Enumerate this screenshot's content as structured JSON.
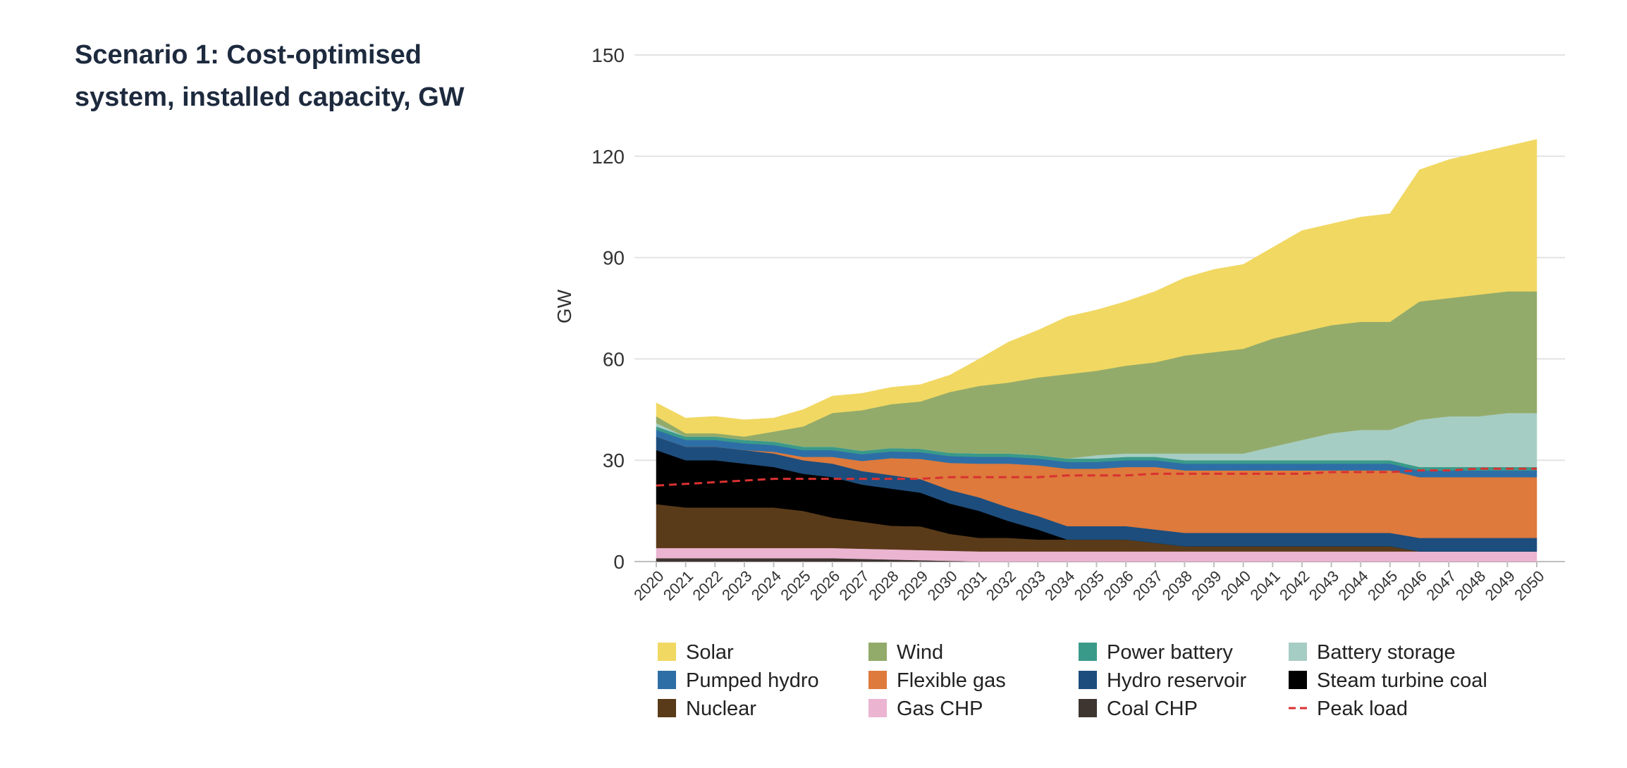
{
  "chart_data": {
    "type": "area",
    "title": "Scenario 1: Cost-optimised system, installed capacity, GW",
    "xlabel": "",
    "ylabel": "GW",
    "ylim": [
      0,
      150
    ],
    "yticks": [
      0,
      30,
      60,
      90,
      120,
      150
    ],
    "grid": true,
    "legend_position": "bottom",
    "x": [
      "2020",
      "2021",
      "2022",
      "2023",
      "2024",
      "2025",
      "2026",
      "2027",
      "2028",
      "2029",
      "2030",
      "2031",
      "2032",
      "2033",
      "2034",
      "2035",
      "2036",
      "2037",
      "2038",
      "2039",
      "2040",
      "2041",
      "2042",
      "2043",
      "2044",
      "2045",
      "2046",
      "2047",
      "2048",
      "2049",
      "2050"
    ],
    "series": [
      {
        "name": "Coal CHP",
        "color": "#3e3530",
        "values": [
          1,
          1,
          1,
          1,
          1,
          1,
          1,
          0.8,
          0.6,
          0.4,
          0.2,
          0,
          0,
          0,
          0,
          0,
          0,
          0,
          0,
          0,
          0,
          0,
          0,
          0,
          0,
          0,
          0,
          0,
          0,
          0,
          0
        ]
      },
      {
        "name": "Gas CHP",
        "color": "#ebb4d1",
        "values": [
          3,
          3,
          3,
          3,
          3,
          3,
          3,
          3,
          3,
          3,
          3,
          3,
          3,
          3,
          3,
          3,
          3,
          3,
          3,
          3,
          3,
          3,
          3,
          3,
          3,
          3,
          3,
          3,
          3,
          3,
          3
        ]
      },
      {
        "name": "Nuclear",
        "color": "#5a3b19",
        "values": [
          13,
          12,
          12,
          12,
          12,
          11,
          9,
          8,
          7,
          7,
          5,
          4,
          4,
          3.5,
          3.5,
          3.5,
          3.5,
          2.5,
          1.5,
          1.5,
          1.5,
          1.5,
          1.5,
          1.5,
          1.5,
          1.5,
          0,
          0,
          0,
          0,
          0
        ]
      },
      {
        "name": "Steam turbine coal",
        "color": "#000000",
        "values": [
          16,
          14,
          14,
          13,
          12,
          11,
          12,
          11,
          11,
          10,
          9,
          8,
          5,
          3,
          0,
          0,
          0,
          0,
          0,
          0,
          0,
          0,
          0,
          0,
          0,
          0,
          0,
          0,
          0,
          0,
          0
        ]
      },
      {
        "name": "Hydro reservoir",
        "color": "#1d4d7c",
        "values": [
          4,
          4,
          4,
          4,
          4,
          4,
          4,
          4,
          4,
          4,
          4,
          4,
          4,
          4,
          4,
          4,
          4,
          4,
          4,
          4,
          4,
          4,
          4,
          4,
          4,
          4,
          4,
          4,
          4,
          4,
          4
        ]
      },
      {
        "name": "Flexible gas",
        "color": "#dd7a3c",
        "values": [
          0,
          0,
          0,
          0,
          0.5,
          1,
          2,
          3,
          5,
          6,
          8,
          10,
          13,
          15,
          17,
          17,
          17.5,
          18.5,
          18.5,
          18.5,
          18.5,
          18.5,
          18.5,
          18.5,
          18.5,
          18.5,
          18,
          18,
          18,
          18,
          18
        ]
      },
      {
        "name": "Pumped hydro",
        "color": "#2e6ea6",
        "values": [
          2,
          2,
          2,
          2,
          2,
          2,
          2,
          2,
          2,
          2,
          2,
          2,
          2,
          2,
          2,
          2,
          2,
          2,
          2,
          2,
          2,
          2,
          2,
          2,
          2,
          2,
          2,
          2,
          2,
          2,
          2
        ]
      },
      {
        "name": "Power battery",
        "color": "#3a9a8a",
        "values": [
          1,
          1,
          1,
          1,
          1,
          1,
          1,
          1,
          1,
          1,
          1,
          1,
          1,
          1,
          1,
          1,
          1,
          1,
          1,
          1,
          1,
          1,
          1,
          1,
          1,
          1,
          1,
          1,
          1,
          1,
          1
        ]
      },
      {
        "name": "Battery storage",
        "color": "#a6cdc3",
        "values": [
          1,
          0,
          0,
          0,
          0,
          0,
          0,
          0,
          0,
          0,
          0,
          0,
          0,
          0,
          0,
          1,
          1,
          1,
          2,
          2,
          2,
          4,
          6,
          8,
          9,
          9,
          14,
          15,
          15,
          16,
          16
        ]
      },
      {
        "name": "Wind",
        "color": "#93ab6a",
        "values": [
          2,
          1,
          1,
          1,
          3,
          6,
          10,
          12,
          13,
          14,
          18,
          20,
          21,
          23,
          25,
          25,
          26,
          27,
          29,
          30,
          31,
          32,
          32,
          32,
          32,
          32,
          35,
          35,
          36,
          36,
          36
        ]
      },
      {
        "name": "Solar",
        "color": "#f1d862",
        "values": [
          4,
          4.5,
          5,
          5,
          4,
          5,
          5,
          5,
          5,
          5,
          5,
          8,
          12,
          14,
          17,
          18,
          19,
          21,
          23,
          24.5,
          25,
          27,
          30,
          30,
          31,
          32,
          39,
          41,
          42,
          43,
          45
        ]
      }
    ],
    "lines": [
      {
        "name": "Peak load",
        "color": "#d93131",
        "style": "dashed",
        "values": [
          22.5,
          23,
          23.5,
          24,
          24.5,
          24.5,
          24.5,
          24.5,
          24.5,
          24.5,
          25,
          25,
          25,
          25,
          25.5,
          25.5,
          25.5,
          26,
          26,
          26,
          26,
          26,
          26,
          26.5,
          26.5,
          26.5,
          27,
          27,
          27.5,
          27.5,
          27.5
        ]
      }
    ],
    "legend": [
      {
        "name": "Solar",
        "color": "#f1d862",
        "kind": "swatch"
      },
      {
        "name": "Wind",
        "color": "#93ab6a",
        "kind": "swatch"
      },
      {
        "name": "Power battery",
        "color": "#3a9a8a",
        "kind": "swatch"
      },
      {
        "name": "Battery storage",
        "color": "#a6cdc3",
        "kind": "swatch"
      },
      {
        "name": "Pumped hydro",
        "color": "#2e6ea6",
        "kind": "swatch"
      },
      {
        "name": "Flexible gas",
        "color": "#dd7a3c",
        "kind": "swatch"
      },
      {
        "name": "Hydro reservoir",
        "color": "#1d4d7c",
        "kind": "swatch"
      },
      {
        "name": "Steam turbine coal",
        "color": "#000000",
        "kind": "swatch"
      },
      {
        "name": "Nuclear",
        "color": "#5a3b19",
        "kind": "swatch"
      },
      {
        "name": "Gas CHP",
        "color": "#ebb4d1",
        "kind": "swatch"
      },
      {
        "name": "Coal CHP",
        "color": "#3e3530",
        "kind": "swatch"
      },
      {
        "name": "Peak load",
        "color": "#d93131",
        "kind": "dashed-line"
      }
    ]
  }
}
